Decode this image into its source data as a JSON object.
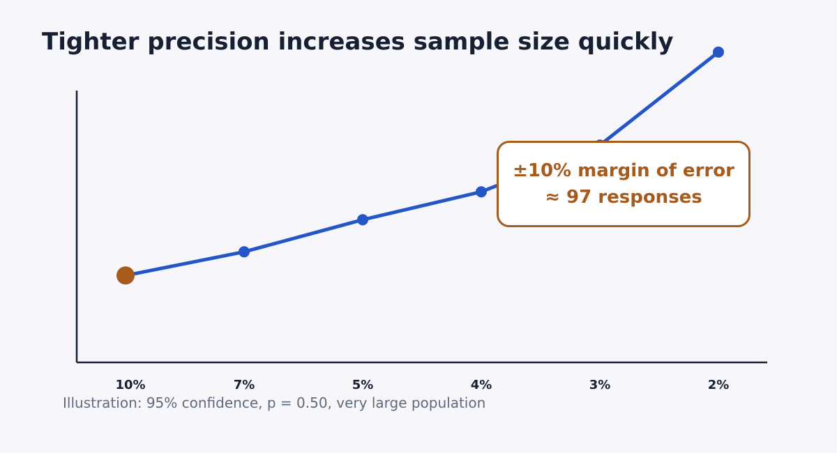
{
  "chart_data": {
    "type": "line",
    "title": "Tighter precision increases sample size quickly",
    "categories": [
      "10%",
      "7%",
      "5%",
      "4%",
      "3%",
      "2%"
    ],
    "series": [
      {
        "values": [
          97,
          196,
          385,
          601,
          1068,
          2401
        ]
      }
    ],
    "highlight": {
      "category": "10%",
      "value": 97
    },
    "annotation": {
      "line1": "±10% margin of error",
      "line2": "≈ 97 responses"
    },
    "note": "Illustration: 95% confidence, p = 0.50, very large population",
    "ylim": [
      0,
      3000
    ],
    "y_scale": "sqrt",
    "grid": false,
    "legend": "none"
  },
  "colors": {
    "line": "#2456c7",
    "highlight": "#a65a1b",
    "axis": "#172033",
    "text": "#172033",
    "note": "#5f6b7d",
    "background": "#f6f6fb"
  }
}
